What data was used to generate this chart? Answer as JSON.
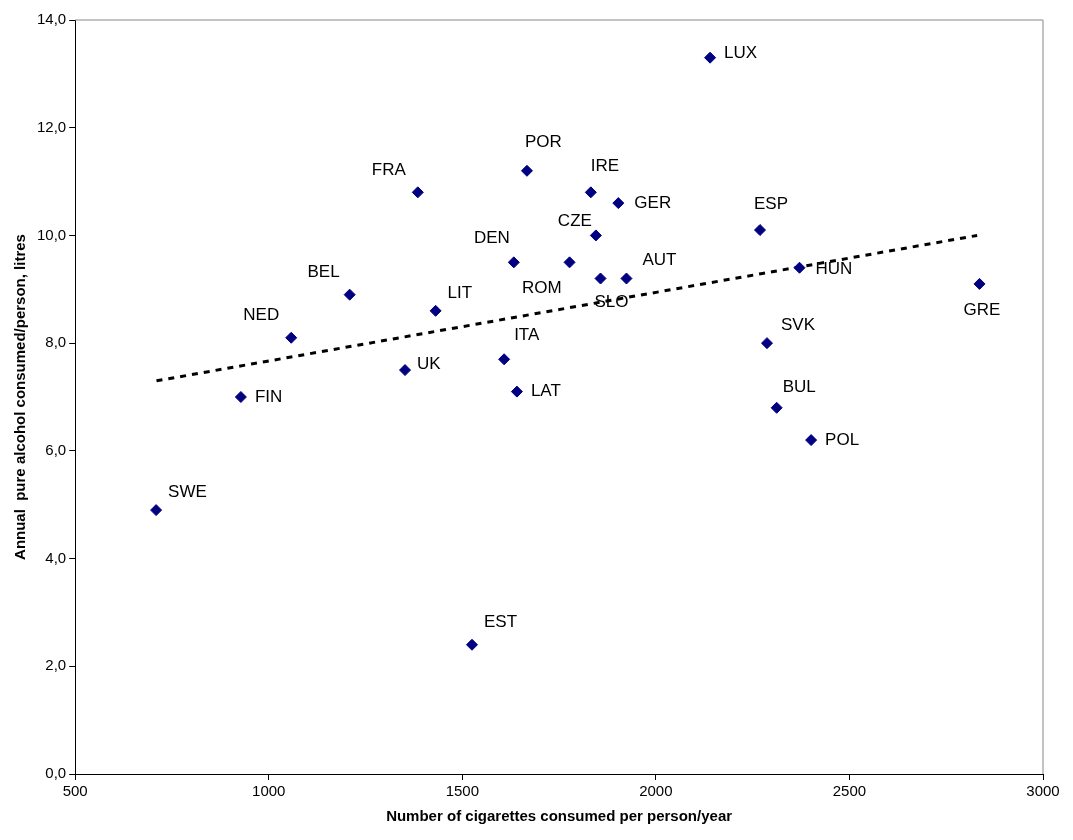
{
  "chart_data": {
    "type": "scatter",
    "xlabel": "Number of cigarettes consumed per person/year",
    "ylabel": "Annual  pure alcohol consumed/person, litres",
    "xlim": [
      500,
      3000
    ],
    "xticks": [
      500,
      1000,
      1500,
      2000,
      2500,
      3000
    ],
    "ylim": [
      0,
      14
    ],
    "yticks": [
      {
        "value": 0,
        "label": "0,0"
      },
      {
        "value": 2,
        "label": "2,0"
      },
      {
        "value": 4,
        "label": "4,0"
      },
      {
        "value": 6,
        "label": "6,0"
      },
      {
        "value": 8,
        "label": "8,0"
      },
      {
        "value": 10,
        "label": "10,0"
      },
      {
        "value": 12,
        "label": "12,0"
      },
      {
        "value": 14,
        "label": "14,0"
      }
    ],
    "grid": false,
    "legend": false,
    "marker": "diamond",
    "series": [
      {
        "type": "scatter",
        "color": "#000080",
        "x": [
          709,
          928,
          1058,
          1209,
          1431,
          1352,
          1385,
          1633,
          1608,
          1641,
          1667,
          2140,
          1832,
          1903,
          1845,
          1777,
          1857,
          1924,
          2269,
          2371,
          2836,
          2287,
          2312,
          2401,
          1525
        ],
        "values": [
          4.9,
          7.0,
          8.1,
          8.9,
          8.6,
          7.5,
          10.8,
          9.5,
          7.7,
          7.1,
          11.2,
          13.3,
          10.8,
          10.6,
          10.0,
          9.5,
          9.2,
          9.2,
          10.1,
          9.4,
          9.1,
          8.0,
          6.8,
          6.2,
          2.4
        ]
      },
      {
        "type": "line",
        "color": "#000000",
        "line_style": "dashed",
        "marker": "none",
        "x": [
          710,
          2830
        ],
        "values": [
          7.3,
          10.0
        ]
      }
    ],
    "annotations": [
      {
        "text": "SWE",
        "x": 709,
        "y": 4.9
      },
      {
        "text": "FIN",
        "x": 928,
        "y": 7.0
      },
      {
        "text": "NED",
        "x": 1058,
        "y": 8.1
      },
      {
        "text": "BEL",
        "x": 1209,
        "y": 8.9
      },
      {
        "text": "LIT",
        "x": 1431,
        "y": 8.6
      },
      {
        "text": "UK",
        "x": 1352,
        "y": 7.5
      },
      {
        "text": "FRA",
        "x": 1385,
        "y": 10.8
      },
      {
        "text": "DEN",
        "x": 1633,
        "y": 9.5
      },
      {
        "text": "ITA",
        "x": 1608,
        "y": 7.7
      },
      {
        "text": "LAT",
        "x": 1641,
        "y": 7.1
      },
      {
        "text": "POR",
        "x": 1667,
        "y": 11.2
      },
      {
        "text": "LUX",
        "x": 2140,
        "y": 13.3
      },
      {
        "text": "IRE",
        "x": 1832,
        "y": 10.8
      },
      {
        "text": "GER",
        "x": 1903,
        "y": 10.6
      },
      {
        "text": "CZE",
        "x": 1845,
        "y": 10.0
      },
      {
        "text": "ROM",
        "x": 1777,
        "y": 9.5
      },
      {
        "text": "SLO",
        "x": 1857,
        "y": 9.2
      },
      {
        "text": "AUT",
        "x": 1924,
        "y": 9.2
      },
      {
        "text": "ESP",
        "x": 2269,
        "y": 10.1
      },
      {
        "text": "HUN",
        "x": 2371,
        "y": 9.4
      },
      {
        "text": "GRE",
        "x": 2836,
        "y": 9.1
      },
      {
        "text": "SVK",
        "x": 2287,
        "y": 8.0
      },
      {
        "text": "BUL",
        "x": 2312,
        "y": 6.8
      },
      {
        "text": "POL",
        "x": 2401,
        "y": 6.2
      },
      {
        "text": "EST",
        "x": 1525,
        "y": 2.4
      }
    ]
  }
}
